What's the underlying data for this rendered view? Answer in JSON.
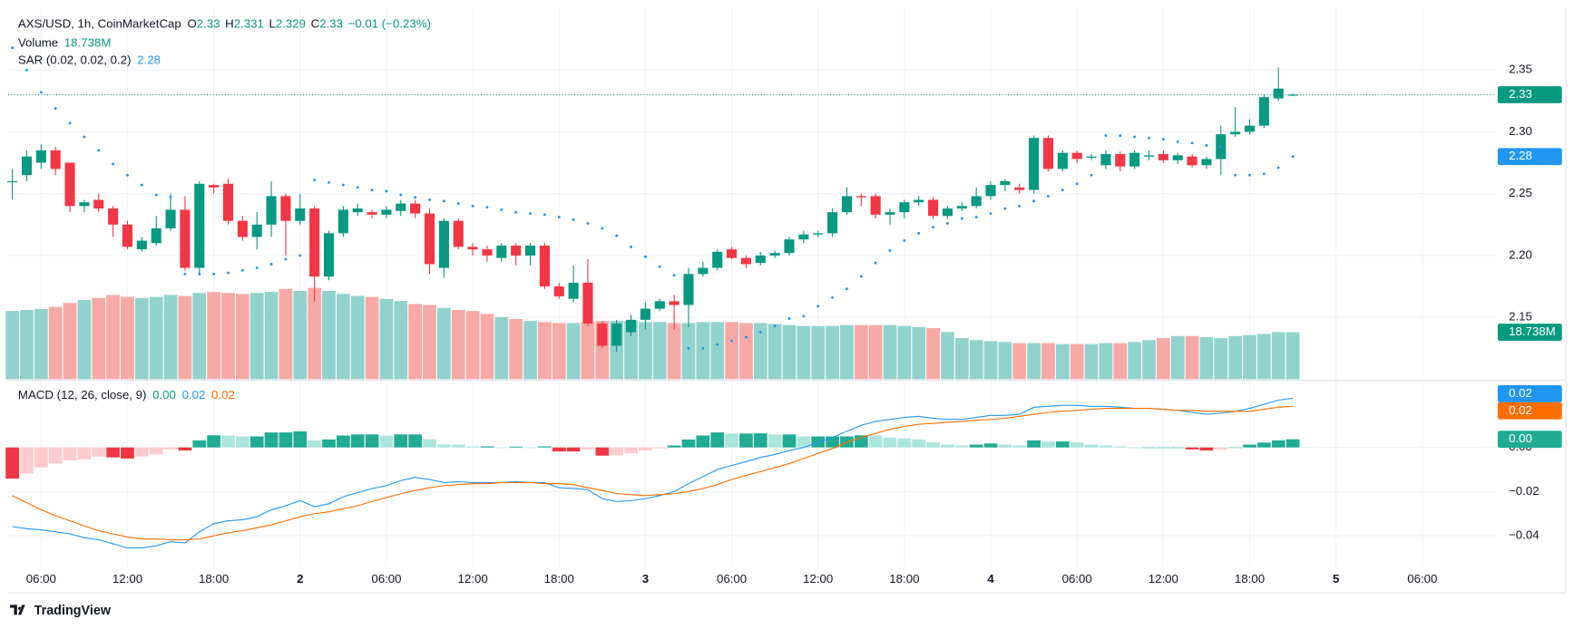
{
  "chart_data": {
    "type": "candlestick",
    "symbol": "AXS/USD, 1h, CoinMarketCap",
    "ohlc_labels": [
      "O",
      "H",
      "L",
      "C"
    ],
    "change": "−0.01 (−0.23%)",
    "open": [
      2.26,
      2.265,
      2.275,
      2.285,
      2.275,
      2.24,
      2.245,
      2.238,
      2.225,
      2.205,
      2.21,
      2.222,
      2.237,
      2.19,
      2.257,
      2.258,
      2.228,
      2.215,
      2.225,
      2.248,
      2.228,
      2.238,
      2.183,
      2.218,
      2.235,
      2.235,
      2.233,
      2.236,
      2.242,
      2.234,
      2.19,
      2.228,
      2.207,
      2.205,
      2.198,
      2.208,
      2.2,
      2.208,
      2.175,
      2.165,
      2.178,
      2.145,
      2.127,
      2.138,
      2.148,
      2.157,
      2.163,
      2.16,
      2.185,
      2.19,
      2.205,
      2.198,
      2.194,
      2.2,
      2.202,
      2.213,
      2.217,
      2.218,
      2.235,
      2.248,
      2.248,
      2.233,
      2.235,
      2.243,
      2.245,
      2.232,
      2.238,
      2.24,
      2.248,
      2.257,
      2.255,
      2.253,
      2.295,
      2.27,
      2.283,
      2.279,
      2.273,
      2.282,
      2.272,
      2.28,
      2.282,
      2.277,
      2.28,
      2.273,
      2.278,
      2.298,
      2.3,
      2.305,
      2.327,
      2.33
    ],
    "high": [
      2.27,
      2.285,
      2.29,
      2.288,
      2.275,
      2.245,
      2.25,
      2.24,
      2.228,
      2.215,
      2.232,
      2.25,
      2.248,
      2.26,
      2.258,
      2.262,
      2.232,
      2.235,
      2.26,
      2.25,
      2.25,
      2.24,
      2.22,
      2.24,
      2.242,
      2.237,
      2.24,
      2.245,
      2.245,
      2.238,
      2.23,
      2.23,
      2.21,
      2.208,
      2.21,
      2.21,
      2.21,
      2.21,
      2.178,
      2.192,
      2.197,
      2.147,
      2.148,
      2.152,
      2.162,
      2.165,
      2.168,
      2.19,
      2.195,
      2.205,
      2.207,
      2.2,
      2.203,
      2.204,
      2.215,
      2.22,
      2.22,
      2.238,
      2.255,
      2.25,
      2.25,
      2.238,
      2.245,
      2.248,
      2.247,
      2.24,
      2.243,
      2.255,
      2.26,
      2.262,
      2.258,
      2.297,
      2.297,
      2.285,
      2.285,
      2.282,
      2.285,
      2.284,
      2.285,
      2.285,
      2.285,
      2.283,
      2.282,
      2.28,
      2.305,
      2.32,
      2.31,
      2.33,
      2.352,
      2.331
    ],
    "low": [
      2.245,
      2.26,
      2.27,
      2.265,
      2.235,
      2.235,
      2.235,
      2.215,
      2.205,
      2.203,
      2.208,
      2.22,
      2.188,
      2.185,
      2.25,
      2.225,
      2.212,
      2.205,
      2.215,
      2.2,
      2.225,
      2.163,
      2.18,
      2.215,
      2.232,
      2.23,
      2.23,
      2.232,
      2.23,
      2.185,
      2.182,
      2.205,
      2.2,
      2.195,
      2.195,
      2.192,
      2.192,
      2.173,
      2.165,
      2.162,
      2.143,
      2.125,
      2.122,
      2.135,
      2.14,
      2.155,
      2.14,
      2.142,
      2.183,
      2.188,
      2.197,
      2.19,
      2.192,
      2.198,
      2.2,
      2.21,
      2.215,
      2.215,
      2.233,
      2.24,
      2.23,
      2.225,
      2.23,
      2.24,
      2.23,
      2.23,
      2.236,
      2.238,
      2.245,
      2.252,
      2.25,
      2.25,
      2.268,
      2.268,
      2.275,
      2.277,
      2.27,
      2.268,
      2.27,
      2.277,
      2.275,
      2.274,
      2.271,
      2.27,
      2.265,
      2.296,
      2.298,
      2.303,
      2.325,
      2.329
    ],
    "close": [
      2.26,
      2.28,
      2.285,
      2.27,
      2.24,
      2.243,
      2.238,
      2.225,
      2.207,
      2.212,
      2.222,
      2.237,
      2.19,
      2.258,
      2.255,
      2.228,
      2.215,
      2.225,
      2.248,
      2.228,
      2.238,
      2.183,
      2.218,
      2.237,
      2.238,
      2.233,
      2.237,
      2.242,
      2.234,
      2.193,
      2.228,
      2.207,
      2.205,
      2.2,
      2.208,
      2.2,
      2.208,
      2.175,
      2.167,
      2.178,
      2.145,
      2.127,
      2.145,
      2.148,
      2.157,
      2.163,
      2.16,
      2.185,
      2.19,
      2.203,
      2.198,
      2.193,
      2.2,
      2.202,
      2.213,
      2.217,
      2.218,
      2.235,
      2.248,
      2.247,
      2.233,
      2.235,
      2.243,
      2.245,
      2.232,
      2.238,
      2.24,
      2.248,
      2.257,
      2.26,
      2.253,
      2.295,
      2.27,
      2.283,
      2.278,
      2.28,
      2.282,
      2.272,
      2.283,
      2.281,
      2.277,
      2.281,
      2.273,
      2.278,
      2.298,
      2.3,
      2.305,
      2.328,
      2.335,
      2.33
    ],
    "up_color": "#089981",
    "down_color": "#f23645",
    "ylim": [
      2.1,
      2.4
    ],
    "yticks": [
      2.15,
      {
        "value": 2.2,
        "label": "2.20"
      },
      2.25,
      {
        "value": 2.3,
        "label": "2.30"
      },
      2.35
    ],
    "xlim": [
      -0.3,
      103.1
    ],
    "xticks": [
      {
        "value": 2,
        "label": "06:00"
      },
      {
        "value": 8,
        "label": "12:00"
      },
      {
        "value": 14,
        "label": "18:00"
      },
      {
        "value": 20,
        "label": "2"
      },
      {
        "value": 26,
        "label": "06:00"
      },
      {
        "value": 32,
        "label": "12:00"
      },
      {
        "value": 38,
        "label": "18:00"
      },
      {
        "value": 44,
        "label": "3"
      },
      {
        "value": 50,
        "label": "06:00"
      },
      {
        "value": 56,
        "label": "12:00"
      },
      {
        "value": 62,
        "label": "18:00"
      },
      {
        "value": 68,
        "label": "4"
      },
      {
        "value": 74,
        "label": "06:00"
      },
      {
        "value": 80,
        "label": "12:00"
      },
      {
        "value": 86,
        "label": "18:00"
      },
      {
        "value": 92,
        "label": "5"
      },
      {
        "value": 98,
        "label": "06:00"
      }
    ],
    "grid": true,
    "volume": {
      "name": "Volume",
      "last_label": "18.738M",
      "ylim": [
        0,
        40
      ],
      "up_color": "#92d2cc",
      "down_color": "#f7a9a7",
      "values": [
        27.2,
        27.6,
        28,
        28.8,
        30.4,
        31.6,
        32.4,
        33.6,
        32.8,
        32.4,
        32.8,
        33.6,
        33.2,
        34.4,
        34.8,
        34.4,
        34,
        34.4,
        34.8,
        36,
        35.2,
        36.4,
        35.2,
        34,
        33.2,
        32.8,
        32,
        31.2,
        30,
        29.6,
        28.4,
        27.6,
        27.2,
        26,
        24.8,
        24,
        23.2,
        22.8,
        22.4,
        22.4,
        22.8,
        23.2,
        23.2,
        23.2,
        22.8,
        22.8,
        22.4,
        22.4,
        22.8,
        22.8,
        22.8,
        22.4,
        22.4,
        22,
        21.6,
        21.2,
        21.2,
        21.2,
        21.6,
        21.6,
        21.6,
        21.6,
        21.2,
        20.8,
        20.4,
        18.8,
        16.4,
        15.6,
        15.2,
        14.8,
        14.4,
        14.4,
        14.4,
        14,
        14,
        14,
        14.4,
        14.4,
        14.8,
        15.6,
        16.4,
        17.2,
        17.2,
        16.8,
        16.4,
        17.2,
        17.6,
        18,
        18.8,
        18.738
      ]
    },
    "sar": {
      "name": "SAR (0.02, 0.02, 0.2)",
      "color": "#2196f3",
      "values": [
        2.368,
        2.35,
        2.332,
        2.319,
        2.307,
        2.296,
        2.285,
        2.274,
        2.265,
        2.257,
        2.249,
        2.247,
        2.185,
        2.185,
        2.185,
        2.186,
        2.188,
        2.19,
        2.193,
        2.197,
        2.2,
        2.261,
        2.259,
        2.257,
        2.255,
        2.253,
        2.252,
        2.249,
        2.247,
        2.245,
        2.244,
        2.242,
        2.24,
        2.239,
        2.237,
        2.235,
        2.234,
        2.233,
        2.231,
        2.229,
        2.226,
        2.222,
        2.216,
        2.207,
        2.199,
        2.191,
        2.184,
        2.125,
        2.125,
        2.128,
        2.131,
        2.134,
        2.138,
        2.143,
        2.149,
        2.151,
        2.159,
        2.166,
        2.173,
        2.183,
        2.194,
        2.204,
        2.212,
        2.218,
        2.223,
        2.226,
        2.23,
        2.231,
        2.234,
        2.238,
        2.24,
        2.244,
        2.248,
        2.253,
        2.258,
        2.265,
        2.297,
        2.297,
        2.296,
        2.295,
        2.294,
        2.292,
        2.291,
        2.289,
        2.288,
        2.265,
        2.265,
        2.266,
        2.271,
        2.28
      ]
    },
    "macd": {
      "name": "MACD (12, 26, close, 9)",
      "ylim": [
        -0.054,
        0.03
      ],
      "yticks": [
        {
          "value": 0,
          "label": "0.00"
        },
        {
          "value": -0.02,
          "label": "−0.02"
        },
        {
          "value": -0.04,
          "label": "−0.04"
        }
      ],
      "histogram": {
        "last_label": "0.00",
        "colors": [
          "#22ab94",
          "#ace5dc",
          "#fccbcd",
          "#f23645"
        ],
        "values": [
          -0.0141,
          -0.0118,
          -0.0091,
          -0.0073,
          -0.0059,
          -0.0054,
          -0.0041,
          -0.0045,
          -0.005,
          -0.0041,
          -0.0031,
          -0.0009,
          -0.0014,
          0.0032,
          0.0055,
          0.0054,
          0.005,
          0.005,
          0.0068,
          0.0068,
          0.0073,
          0.0032,
          0.0036,
          0.0054,
          0.0059,
          0.0059,
          0.0054,
          0.0059,
          0.0059,
          0.0037,
          0.0014,
          0.0013,
          0.0005,
          0.0005,
          0,
          0.0004,
          0,
          0.0005,
          -0.0018,
          -0.0018,
          -0.0009,
          -0.0037,
          -0.0036,
          -0.0027,
          -0.0014,
          -0.0004,
          0.0009,
          0.0036,
          0.0054,
          0.0068,
          0.0063,
          0.0063,
          0.0064,
          0.0059,
          0.0059,
          0.005,
          0.005,
          0.005,
          0.005,
          0.0055,
          0.0054,
          0.0045,
          0.0041,
          0.0036,
          0.0023,
          0.0013,
          0.0009,
          0.0013,
          0.0018,
          0.0013,
          0.0009,
          0.0032,
          0.0027,
          0.0027,
          0.0023,
          0.0013,
          0.0009,
          0.0005,
          0,
          0,
          0,
          0,
          -0.0009,
          -0.0014,
          -0.0009,
          0,
          0.0013,
          0.0022,
          0.0032,
          0.0037
        ]
      },
      "macd": {
        "color": "#2196f3",
        "last_label": "0.02",
        "values": [
          -0.0359,
          -0.0368,
          -0.0373,
          -0.0382,
          -0.0391,
          -0.0409,
          -0.0418,
          -0.0436,
          -0.0455,
          -0.0455,
          -0.0445,
          -0.0427,
          -0.0432,
          -0.0382,
          -0.0345,
          -0.0332,
          -0.0327,
          -0.0314,
          -0.0282,
          -0.0264,
          -0.0241,
          -0.0268,
          -0.0255,
          -0.0223,
          -0.0205,
          -0.0186,
          -0.0173,
          -0.015,
          -0.0136,
          -0.0145,
          -0.0159,
          -0.0155,
          -0.0159,
          -0.0159,
          -0.0159,
          -0.0155,
          -0.0159,
          -0.0159,
          -0.0182,
          -0.0186,
          -0.0191,
          -0.0232,
          -0.0245,
          -0.0241,
          -0.0232,
          -0.0218,
          -0.02,
          -0.0164,
          -0.0132,
          -0.01,
          -0.0082,
          -0.0064,
          -0.0045,
          -0.0032,
          -0.0014,
          0,
          0.0023,
          0.0045,
          0.0073,
          0.01,
          0.0118,
          0.0127,
          0.0136,
          0.0141,
          0.0132,
          0.0127,
          0.0127,
          0.0136,
          0.0145,
          0.0145,
          0.015,
          0.0182,
          0.0186,
          0.0191,
          0.0191,
          0.0186,
          0.0186,
          0.0182,
          0.0177,
          0.0177,
          0.0173,
          0.0168,
          0.0159,
          0.015,
          0.0155,
          0.0164,
          0.0177,
          0.0195,
          0.0214,
          0.0223
        ]
      },
      "signal": {
        "color": "#ff6d00",
        "last_label": "0.02",
        "values": [
          -0.0218,
          -0.025,
          -0.0282,
          -0.0309,
          -0.0332,
          -0.0355,
          -0.0377,
          -0.0391,
          -0.0405,
          -0.0414,
          -0.0414,
          -0.0418,
          -0.0418,
          -0.0414,
          -0.04,
          -0.0386,
          -0.0377,
          -0.0364,
          -0.035,
          -0.0332,
          -0.0314,
          -0.03,
          -0.0291,
          -0.0277,
          -0.0264,
          -0.0245,
          -0.0227,
          -0.0209,
          -0.0195,
          -0.0182,
          -0.0173,
          -0.0168,
          -0.0164,
          -0.0164,
          -0.0159,
          -0.0159,
          -0.0159,
          -0.0164,
          -0.0164,
          -0.0168,
          -0.0182,
          -0.0195,
          -0.0209,
          -0.0214,
          -0.0218,
          -0.0214,
          -0.0209,
          -0.02,
          -0.0186,
          -0.0168,
          -0.0145,
          -0.0127,
          -0.0109,
          -0.0091,
          -0.0073,
          -0.005,
          -0.0027,
          -0.0005,
          0.0023,
          0.0045,
          0.0064,
          0.0082,
          0.0095,
          0.0105,
          0.0109,
          0.0114,
          0.0118,
          0.0123,
          0.0127,
          0.0132,
          0.0141,
          0.015,
          0.0159,
          0.0164,
          0.0168,
          0.0173,
          0.0177,
          0.0177,
          0.0177,
          0.0177,
          0.0173,
          0.0168,
          0.0168,
          0.0164,
          0.0164,
          0.0164,
          0.0164,
          0.0173,
          0.0182,
          0.0186
        ]
      }
    },
    "branding": "TradingView"
  }
}
